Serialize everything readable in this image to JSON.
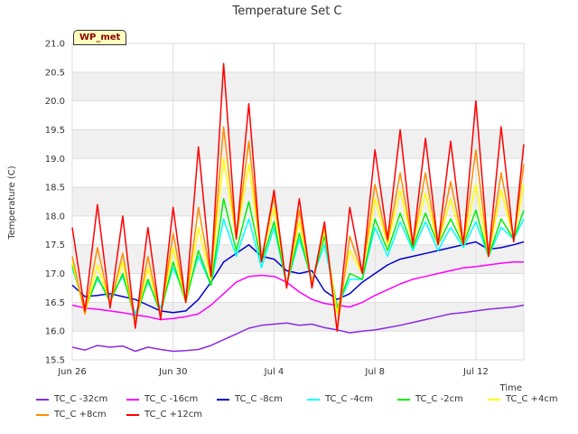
{
  "chart_data": {
    "type": "line",
    "title": "Temperature Set C",
    "xlabel": "Time",
    "ylabel": "Temperature (C)",
    "badge": "WP_met",
    "x_ticks": [
      "Jun 26",
      "Jun 30",
      "Jul 4",
      "Jul 8",
      "Jul 12"
    ],
    "x_tick_days": [
      0,
      4,
      8,
      12,
      16
    ],
    "xlim": [
      0,
      17.9
    ],
    "ylim": [
      15.5,
      21.0
    ],
    "y_ticks": [
      "15.5",
      "16.0",
      "16.5",
      "17.0",
      "17.5",
      "18.0",
      "18.5",
      "19.0",
      "19.5",
      "20.0",
      "20.5",
      "21.0"
    ],
    "grid": true,
    "legend_position": "bottom",
    "x": [
      0,
      0.5,
      1,
      1.5,
      2,
      2.5,
      3,
      3.5,
      4,
      4.5,
      5,
      5.5,
      6,
      6.5,
      7,
      7.5,
      8,
      8.5,
      9,
      9.5,
      10,
      10.5,
      11,
      11.5,
      12,
      12.5,
      13,
      13.5,
      14,
      14.5,
      15,
      15.5,
      16,
      16.5,
      17,
      17.5,
      17.9
    ],
    "series": [
      {
        "name": "TC_C -32cm",
        "color": "#8a2be2",
        "values": [
          15.72,
          15.67,
          15.75,
          15.72,
          15.74,
          15.65,
          15.72,
          15.68,
          15.65,
          15.66,
          15.68,
          15.75,
          15.85,
          15.95,
          16.05,
          16.1,
          16.12,
          16.14,
          16.1,
          16.12,
          16.06,
          16.02,
          15.97,
          16.0,
          16.02,
          16.06,
          16.1,
          16.15,
          16.2,
          16.25,
          16.3,
          16.32,
          16.35,
          16.38,
          16.4,
          16.42,
          16.45
        ]
      },
      {
        "name": "TC_C -16cm",
        "color": "#ff00ff",
        "values": [
          16.45,
          16.4,
          16.38,
          16.35,
          16.32,
          16.28,
          16.25,
          16.2,
          16.22,
          16.25,
          16.3,
          16.45,
          16.65,
          16.85,
          16.95,
          16.97,
          16.95,
          16.85,
          16.68,
          16.55,
          16.48,
          16.45,
          16.42,
          16.5,
          16.62,
          16.72,
          16.82,
          16.9,
          16.95,
          17.0,
          17.05,
          17.1,
          17.12,
          17.15,
          17.18,
          17.2,
          17.2
        ]
      },
      {
        "name": "TC_C -8cm",
        "color": "#0000cd",
        "values": [
          16.8,
          16.6,
          16.62,
          16.65,
          16.6,
          16.55,
          16.45,
          16.35,
          16.32,
          16.35,
          16.55,
          16.85,
          17.2,
          17.35,
          17.5,
          17.3,
          17.25,
          17.05,
          17.0,
          17.05,
          16.7,
          16.55,
          16.65,
          16.85,
          17.0,
          17.15,
          17.25,
          17.3,
          17.35,
          17.4,
          17.45,
          17.5,
          17.55,
          17.42,
          17.45,
          17.5,
          17.55
        ]
      },
      {
        "name": "TC_C -4cm",
        "color": "#00ffff",
        "values": [
          17.1,
          16.4,
          16.9,
          16.6,
          16.95,
          16.3,
          16.85,
          16.4,
          17.1,
          16.6,
          17.3,
          16.8,
          17.95,
          17.3,
          17.95,
          17.1,
          17.8,
          16.8,
          17.6,
          16.9,
          17.5,
          16.4,
          16.9,
          16.9,
          17.8,
          17.3,
          17.9,
          17.4,
          17.9,
          17.4,
          17.8,
          17.45,
          17.9,
          17.3,
          17.8,
          17.6,
          17.95
        ]
      },
      {
        "name": "TC_C -2cm",
        "color": "#00ee00",
        "values": [
          17.15,
          16.35,
          16.95,
          16.5,
          17.0,
          16.2,
          16.9,
          16.3,
          17.2,
          16.5,
          17.4,
          16.8,
          18.3,
          17.4,
          18.25,
          17.2,
          17.9,
          16.8,
          17.7,
          16.85,
          17.65,
          16.4,
          17.0,
          16.9,
          17.95,
          17.4,
          18.05,
          17.45,
          18.05,
          17.5,
          17.95,
          17.5,
          18.1,
          17.3,
          17.95,
          17.6,
          18.1
        ]
      },
      {
        "name": "TC_C +4cm",
        "color": "#ffff00",
        "values": [
          17.2,
          16.3,
          17.15,
          16.5,
          17.2,
          16.15,
          17.1,
          16.3,
          17.45,
          16.5,
          17.8,
          16.9,
          19.0,
          17.6,
          18.9,
          17.25,
          18.15,
          16.8,
          17.9,
          16.85,
          17.75,
          16.3,
          17.4,
          17.0,
          18.3,
          17.5,
          18.45,
          17.5,
          18.4,
          17.5,
          18.3,
          17.5,
          18.55,
          17.3,
          18.45,
          17.6,
          18.55
        ]
      },
      {
        "name": "TC_C +8cm",
        "color": "#ff8c00",
        "values": [
          17.3,
          16.3,
          17.45,
          16.45,
          17.35,
          16.1,
          17.3,
          16.25,
          17.7,
          16.5,
          18.15,
          16.95,
          19.55,
          17.6,
          19.3,
          17.25,
          18.35,
          16.75,
          18.1,
          16.8,
          17.85,
          16.0,
          17.65,
          17.0,
          18.55,
          17.55,
          18.75,
          17.5,
          18.75,
          17.5,
          18.6,
          17.5,
          19.15,
          17.3,
          18.75,
          17.6,
          18.9
        ]
      },
      {
        "name": "TC_C +12cm",
        "color": "#ff0000",
        "values": [
          17.8,
          16.35,
          18.2,
          16.4,
          18.0,
          16.05,
          17.8,
          16.2,
          18.15,
          16.5,
          19.2,
          16.95,
          20.65,
          17.6,
          19.95,
          17.2,
          18.45,
          16.75,
          18.3,
          16.75,
          17.9,
          16.0,
          18.15,
          17.0,
          19.15,
          17.6,
          19.5,
          17.5,
          19.35,
          17.5,
          19.3,
          17.5,
          20.0,
          17.3,
          19.55,
          17.55,
          19.25
        ]
      }
    ]
  }
}
